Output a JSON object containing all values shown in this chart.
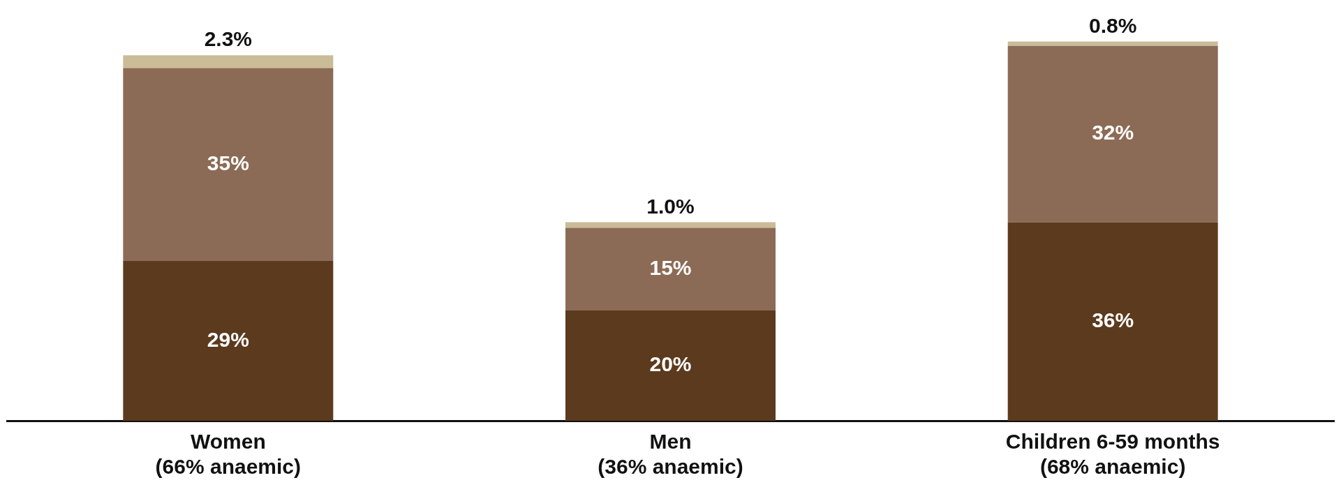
{
  "chart_data": {
    "type": "bar",
    "stacked": true,
    "categories": [
      "Women\n(66% anaemic)",
      "Men\n(36% anaemic)",
      "Children 6-59 months\n(68% anaemic)"
    ],
    "series": [
      {
        "color": "#5c3a1e",
        "values": [
          29,
          20,
          36
        ],
        "value_labels": [
          "29%",
          "20%",
          "36%"
        ]
      },
      {
        "color": "#8b6b55",
        "values": [
          35,
          15,
          32
        ],
        "value_labels": [
          "35%",
          "15%",
          "32%"
        ]
      },
      {
        "color": "#c9bc96",
        "values": [
          2.3,
          1.0,
          0.8
        ],
        "value_labels": [
          "2.3%",
          "1.0%",
          "0.8%"
        ]
      }
    ],
    "grid": false,
    "legend": false
  }
}
